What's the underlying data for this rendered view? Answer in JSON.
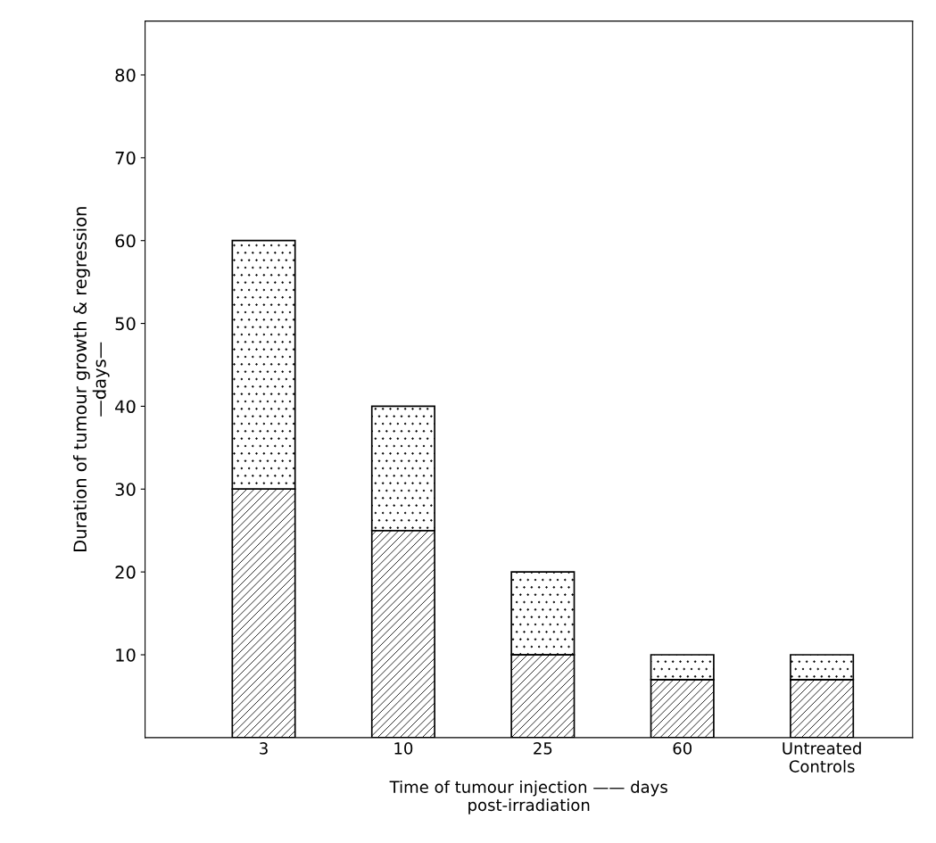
{
  "chart_data": {
    "type": "bar",
    "stacked": true,
    "xlabel": "Time of tumour injection —— days\npost-irradiation",
    "ylabel": "Duration of tumour growth & regression\n—days—",
    "categories": [
      "3",
      "10",
      "25",
      "60",
      "Untreated\nControls"
    ],
    "series": [
      {
        "color": "#000000",
        "values": [
          30,
          25,
          10,
          7,
          7
        ]
      },
      {
        "color": "#000000",
        "values": [
          30,
          15,
          10,
          3,
          3
        ]
      }
    ],
    "ylim": [
      0,
      86.5
    ],
    "yticks": [
      10,
      20,
      30,
      40,
      50,
      60,
      70,
      80
    ],
    "grid": false,
    "legend": false
  }
}
